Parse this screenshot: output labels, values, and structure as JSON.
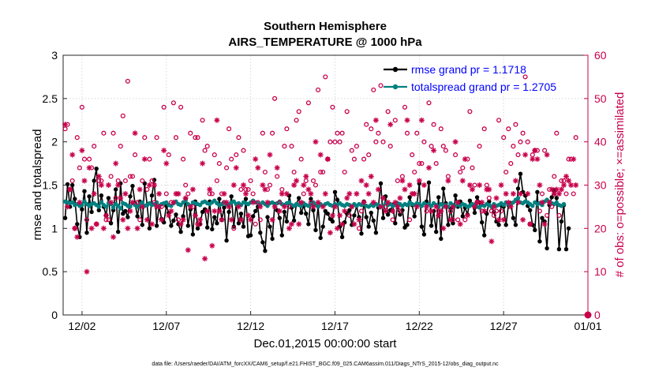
{
  "chart_data": {
    "type": "line",
    "title": "Southern Hemisphere",
    "subtitle": "AIRS_TEMPERATURE @ 1000 hPa",
    "xlabel": "Dec.01,2015 00:00:00 start",
    "ylabel": "rmse and totalspread",
    "y2label": "# of obs: o=possible; ×=assimilated",
    "footer": "data file: /Users/raeder/DAI/ATM_forcXX/CAM6_setup/f.e21.FHIST_BGC.f09_025.CAM6assim.011/Diags_NTrS_2015-12/obs_diag_output.nc",
    "xlim": [
      0,
      31
    ],
    "ylim": [
      0,
      3
    ],
    "y2lim": [
      0,
      60
    ],
    "xticks": [
      {
        "x": 1,
        "label": "12/02"
      },
      {
        "x": 6,
        "label": "12/07"
      },
      {
        "x": 11,
        "label": "12/12"
      },
      {
        "x": 16,
        "label": "12/17"
      },
      {
        "x": 21,
        "label": "12/22"
      },
      {
        "x": 26,
        "label": "12/27"
      },
      {
        "x": 31,
        "label": "01/01"
      }
    ],
    "yticks": [
      {
        "v": 0,
        "label": "0"
      },
      {
        "v": 0.5,
        "label": "0.5"
      },
      {
        "v": 1,
        "label": "1"
      },
      {
        "v": 1.5,
        "label": "1.5"
      },
      {
        "v": 2,
        "label": "2"
      },
      {
        "v": 2.5,
        "label": "2.5"
      },
      {
        "v": 3,
        "label": "3"
      }
    ],
    "y2ticks": [
      {
        "v": 0,
        "label": "0"
      },
      {
        "v": 10,
        "label": "10"
      },
      {
        "v": 20,
        "label": "20"
      },
      {
        "v": 30,
        "label": "30"
      },
      {
        "v": 40,
        "label": "40"
      },
      {
        "v": 50,
        "label": "50"
      },
      {
        "v": 60,
        "label": "60"
      }
    ],
    "grid": true,
    "legend_position": "top-right",
    "legend": [
      {
        "label": "rmse grand pr = 1.1718",
        "color": "#000000"
      },
      {
        "label": "totalspread grand pr = 1.2705",
        "color": "#008080"
      }
    ],
    "series": [
      {
        "name": "rmse",
        "color": "#000000",
        "axis": "left",
        "values": [
          1.12,
          1.51,
          1.25,
          1.5,
          1.34,
          1.05,
          0.9,
          1.22,
          1.43,
          0.95,
          1.37,
          1.19,
          1.55,
          1.69,
          1.21,
          1.38,
          1.25,
          1.15,
          1.35,
          1.06,
          1.21,
          1.45,
          0.96,
          1.52,
          1.17,
          1.2,
          1.13,
          1.37,
          1.49,
          1.29,
          1.14,
          1.31,
          1.04,
          1.52,
          1.27,
          1.0,
          1.38,
          1.56,
          1.03,
          1.26,
          1.11,
          1.07,
          1.26,
          1.18,
          1.03,
          1.09,
          1.16,
          1.05,
          0.96,
          1.14,
          1.34,
          1.03,
          1.22,
          0.93,
          1.31,
          1.0,
          1.05,
          1.19,
          1.22,
          1.01,
          1.31,
          0.99,
          1.13,
          1.06,
          1.34,
          1.1,
          1.24,
          0.86,
          1.19,
          1.37,
          1.02,
          1.28,
          1.06,
          1.17,
          1.02,
          1.34,
          0.91,
          0.92,
          1.14,
          1.2,
          1.25,
          0.95,
          0.84,
          0.74,
          1.13,
          1.02,
          0.88,
          1.28,
          1.21,
          1.12,
          0.92,
          1.19,
          1.08,
          1.38,
          1.24,
          1.09,
          1.28,
          1.35,
          1.18,
          1.26,
          1.17,
          1.05,
          1.34,
          1.21,
          0.98,
          1.25,
          0.89,
          1.02,
          1.2,
          1.17,
          1.11,
          1.08,
          1.42,
          1.33,
          1.02,
          0.9,
          1.07,
          1.17,
          1.21,
          1.04,
          1.15,
          1.26,
          1.13,
          0.94,
          1.31,
          1.13,
          1.02,
          1.18,
          1.09,
          0.95,
          1.24,
          1.52,
          1.12,
          1.37,
          1.16,
          1.21,
          1.27,
          1.06,
          1.27,
          1.16,
          1.21,
          1.01,
          1.04,
          1.36,
          1.27,
          1.14,
          1.27,
          1.52,
          1.02,
          0.93,
          1.31,
          1.53,
          1.03,
          1.2,
          0.96,
          1.36,
          0.88,
          1.46,
          1.29,
          1.04,
          1.23,
          1.06,
          1.38,
          1.25,
          1.31,
          1.14,
          1.24,
          1.16,
          1.32,
          1.28,
          1.18,
          1.36,
          1.3,
          1.07,
          0.92,
          1.17,
          1.31,
          1.25,
          1.19,
          1.08,
          1.04,
          1.27,
          1.25,
          1.04,
          1.27,
          1.29,
          1.12,
          1.04,
          1.46,
          1.63,
          1.42,
          1.38,
          1.26,
          1.21,
          1.04,
          0.98,
          1.42,
          0.85,
          1.12,
          1.08,
          0.77,
          1.27,
          1.36,
          1.44,
          1.35,
          0.76,
          1.08,
          1.27,
          0.76,
          1.0
        ]
      },
      {
        "name": "totalspread",
        "color": "#008080",
        "axis": "left",
        "values": [
          1.31,
          1.3,
          1.29,
          1.3,
          1.27,
          1.28,
          1.26,
          1.27,
          1.31,
          1.28,
          1.26,
          1.28,
          1.29,
          1.27,
          1.25,
          1.3,
          1.27,
          1.25,
          1.29,
          1.28,
          1.24,
          1.28,
          1.26,
          1.23,
          1.29,
          1.28,
          1.26,
          1.25,
          1.29,
          1.27,
          1.25,
          1.28,
          1.3,
          1.26,
          1.27,
          1.29,
          1.27,
          1.28,
          1.3,
          1.26,
          1.28,
          1.29,
          1.3,
          1.27,
          1.26,
          1.29,
          1.31,
          1.28,
          1.27,
          1.3,
          1.32,
          1.28,
          1.26,
          1.3,
          1.29,
          1.28,
          1.27,
          1.3,
          1.31,
          1.29,
          1.28,
          1.3,
          1.32,
          1.29,
          1.27,
          1.28,
          1.3,
          1.28,
          1.27,
          1.3,
          1.31,
          1.28,
          1.29,
          1.27,
          1.3,
          1.29,
          1.28,
          1.3,
          1.32,
          1.3,
          1.29,
          1.27,
          1.3,
          1.28,
          1.26,
          1.29,
          1.3,
          1.27,
          1.29,
          1.31,
          1.28,
          1.27,
          1.29,
          1.3,
          1.27,
          1.26,
          1.28,
          1.27,
          1.26,
          1.29,
          1.27,
          1.26,
          1.28,
          1.3,
          1.27,
          1.25,
          1.28,
          1.26,
          1.28,
          1.29,
          1.27,
          1.26,
          1.28,
          1.27,
          1.29,
          1.27,
          1.26,
          1.28,
          1.27,
          1.25,
          1.28,
          1.26,
          1.28,
          1.27,
          1.28,
          1.26,
          1.25,
          1.27,
          1.26,
          1.28,
          1.27,
          1.25,
          1.26,
          1.29,
          1.27,
          1.28,
          1.26,
          1.27,
          1.29,
          1.28,
          1.26,
          1.28,
          1.27,
          1.3,
          1.28,
          1.27,
          1.29,
          1.28,
          1.26,
          1.29,
          1.27,
          1.28,
          1.26,
          1.29,
          1.27,
          1.25,
          1.28,
          1.26,
          1.27,
          1.25,
          1.29,
          1.27,
          1.26,
          1.28,
          1.26,
          1.28,
          1.27,
          1.25,
          1.26,
          1.28,
          1.27,
          1.25,
          1.24,
          1.27,
          1.26,
          1.28,
          1.27,
          1.25,
          1.28,
          1.26,
          1.27,
          1.29,
          1.27,
          1.3,
          1.28,
          1.27,
          1.3,
          1.33,
          1.35,
          1.3,
          1.29,
          1.31,
          1.3,
          1.28,
          1.26,
          1.3,
          1.28,
          1.29,
          1.27,
          1.31,
          1.33,
          1.3,
          1.29,
          1.28,
          1.3,
          1.27,
          1.26,
          1.28
        ]
      },
      {
        "name": "possible obs count",
        "color": "#c8004b",
        "axis": "right",
        "marker": "o",
        "values": [
          43,
          44,
          29,
          31,
          20,
          41,
          34,
          48,
          36,
          22,
          36,
          34,
          39,
          21,
          31,
          31,
          42,
          22,
          22,
          32,
          42,
          27,
          31,
          39,
          46,
          31,
          54,
          32,
          32,
          37,
          26,
          22,
          31,
          41,
          29,
          36,
          31,
          26,
          41,
          25,
          25,
          48,
          28,
          37,
          26,
          49,
          41,
          22,
          48,
          36,
          30,
          28,
          42,
          25,
          41,
          41,
          21,
          45,
          38,
          39,
          28,
          28,
          37,
          31,
          35,
          28,
          26,
          34,
          43,
          36,
          20,
          37,
          41,
          29,
          38,
          29,
          29,
          31,
          28,
          21,
          26,
          22,
          42,
          33,
          29,
          30,
          42,
          50,
          32,
          26,
          29,
          39,
          43,
          25,
          39,
          33,
          45,
          47,
          36,
          28,
          31,
          49,
          26,
          31,
          30,
          52,
          33,
          33,
          55,
          36,
          40,
          48,
          40,
          42,
          40,
          42,
          33,
          47,
          23,
          38,
          36,
          39,
          20,
          24,
          36,
          44,
          37,
          43,
          52,
          40,
          42,
          53,
          40,
          25,
          47,
          39,
          22,
          45,
          31,
          24,
          32,
          48,
          42,
          22,
          37,
          33,
          42,
          35,
          35,
          40,
          24,
          49,
          39,
          44,
          35,
          24,
          43,
          39,
          38,
          32,
          24,
          22,
          37,
          22,
          33,
          34,
          22,
          36,
          47,
          34,
          30,
          26,
          39,
          24,
          43,
          30,
          27,
          24,
          23,
          24,
          45,
          24,
          41,
          33,
          43,
          35,
          39,
          44,
          37,
          40,
          42,
          55,
          40,
          21,
          37,
          38,
          38,
          24,
          28,
          38,
          23,
          29,
          25,
          32,
          42,
          23,
          31,
          31,
          28,
          36,
          36,
          28,
          41
        ]
      },
      {
        "name": "assimilated obs count",
        "color": "#c8004b",
        "axis": "right",
        "marker": "*",
        "values": [
          44,
          25,
          29,
          37,
          20,
          18,
          26,
          38,
          31,
          10,
          34,
          20,
          28,
          21,
          32,
          30,
          20,
          23,
          30,
          26,
          18,
          35,
          30,
          27,
          22,
          28,
          20,
          24,
          26,
          42,
          20,
          29,
          25,
          36,
          22,
          30,
          21,
          30,
          25,
          28,
          22,
          38,
          35,
          23,
          24,
          26,
          28,
          28,
          21,
          22,
          27,
          15,
          25,
          29,
          23,
          21,
          22,
          35,
          13,
          24,
          29,
          16,
          24,
          45,
          24,
          22,
          28,
          26,
          25,
          22,
          30,
          34,
          25,
          22,
          30,
          28,
          23,
          22,
          26,
          36,
          34,
          25,
          30,
          29,
          26,
          37,
          22,
          25,
          34,
          24,
          28,
          25,
          28,
          20,
          21,
          30,
          31,
          21,
          26,
          30,
          32,
          29,
          28,
          25,
          40,
          26,
          37,
          25,
          28,
          36,
          19,
          23,
          25,
          20,
          23,
          21,
          24,
          27,
          28,
          25,
          21,
          28,
          22,
          31,
          26,
          30,
          28,
          32,
          26,
          45,
          29,
          25,
          27,
          24,
          26,
          44,
          24,
          26,
          25,
          27,
          31,
          29,
          45,
          30,
          28,
          28,
          25,
          31,
          45,
          30,
          25,
          34,
          24,
          38,
          25,
          23,
          24,
          20,
          25,
          31,
          22,
          25,
          40,
          26,
          21,
          31,
          36,
          23,
          30,
          29,
          25,
          26,
          30,
          26,
          24,
          29,
          29,
          17,
          25,
          27,
          22,
          30,
          22,
          28,
          26,
          25,
          28,
          31,
          26,
          28,
          22,
          37,
          28,
          21,
          36,
          38,
          36,
          30,
          26,
          21,
          37,
          26,
          29,
          28,
          29,
          28,
          29,
          30,
          32,
          31,
          30,
          36,
          30
        ]
      },
      {
        "name": "final obs count",
        "color": "#c8004b",
        "axis": "right",
        "marker": "filled-circle",
        "x": [
          31
        ],
        "values": [
          0
        ]
      }
    ]
  }
}
